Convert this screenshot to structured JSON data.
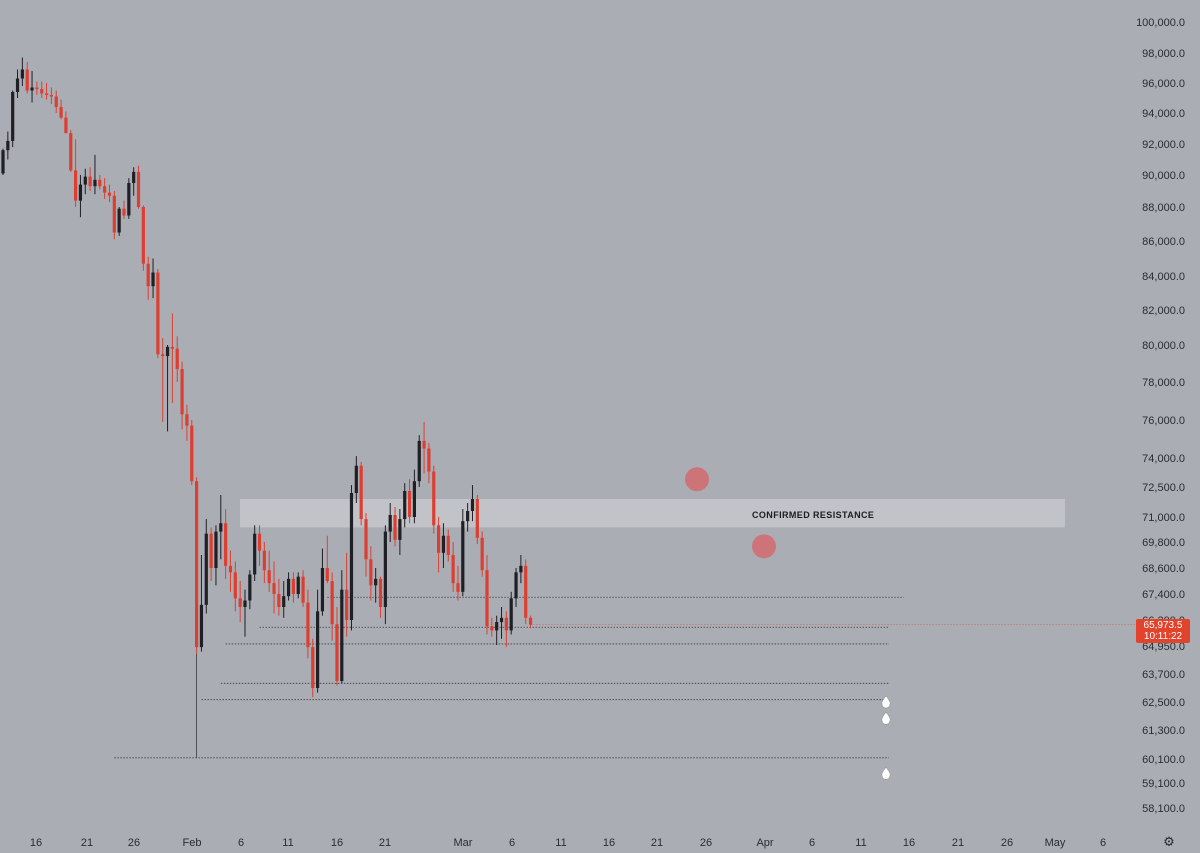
{
  "chart_data": {
    "type": "candlestick",
    "title": "",
    "xlabel": "",
    "ylabel": "",
    "price_axis_labels": [
      "100,000.0",
      "98,000.0",
      "96,000.0",
      "94,000.0",
      "92,000.0",
      "90,000.0",
      "88,000.0",
      "86,000.0",
      "84,000.0",
      "82,000.0",
      "80,000.0",
      "78,000.0",
      "76,000.0",
      "74,000.0",
      "72,500.0",
      "71,000.0",
      "69,800.0",
      "68,600.0",
      "67,400.0",
      "66,200.0",
      "64,950.0",
      "63,700.0",
      "62,500.0",
      "61,300.0",
      "60,100.0",
      "59,100.0",
      "58,100.0"
    ],
    "date_axis_labels": [
      "16",
      "21",
      "26",
      "Feb",
      "6",
      "11",
      "16",
      "21",
      "Mar",
      "6",
      "11",
      "16",
      "21",
      "26",
      "Apr",
      "6",
      "11",
      "16",
      "21",
      "26",
      "May",
      "6"
    ],
    "last_price": "65,973.5",
    "countdown": "10:11:22",
    "annotations": {
      "resistance_label": "CONFIRMED RESISTANCE",
      "resistance_zone": [
        70500,
        71900
      ],
      "rejection_markers": [
        {
          "date_index": 69,
          "price": 72900
        },
        {
          "date_index": 76,
          "price": 69600
        }
      ]
    },
    "support_levels": [
      {
        "price": 67250,
        "from_index": 67,
        "to_index": 89
      },
      {
        "price": 65850,
        "from_index": 53,
        "to_index": 88
      },
      {
        "price": 65050,
        "from_index": 46,
        "to_index": 88
      },
      {
        "price": 63300,
        "from_index": 45,
        "to_index": 88
      },
      {
        "price": 62600,
        "from_index": 41,
        "to_index": 88
      },
      {
        "price": 60150,
        "from_index": 23,
        "to_index": 88
      }
    ],
    "alert_markers": [
      {
        "price": 62500,
        "icon": "droplet-icon"
      },
      {
        "price": 61800,
        "icon": "droplet-icon"
      },
      {
        "price": 59500,
        "icon": "droplet-icon"
      }
    ],
    "candles": [
      [
        90100,
        91700,
        90000,
        91600
      ],
      [
        91600,
        92800,
        91000,
        92200
      ],
      [
        92200,
        95500,
        91800,
        95400
      ],
      [
        95400,
        96900,
        95000,
        96300
      ],
      [
        96300,
        97700,
        95800,
        96900
      ],
      [
        96900,
        97400,
        95300,
        95500
      ],
      [
        95500,
        96800,
        94700,
        95700
      ],
      [
        95700,
        96100,
        95200,
        95600
      ],
      [
        95600,
        96100,
        95000,
        95300
      ],
      [
        95300,
        96000,
        94900,
        95200
      ],
      [
        95200,
        95700,
        94600,
        95100
      ],
      [
        95100,
        95500,
        94000,
        94400
      ],
      [
        94400,
        94900,
        93600,
        93700
      ],
      [
        93700,
        94100,
        92700,
        92700
      ],
      [
        92700,
        92900,
        90200,
        90300
      ],
      [
        90300,
        92300,
        88000,
        88400
      ],
      [
        88400,
        90000,
        87400,
        89400
      ],
      [
        89400,
        90400,
        88800,
        89900
      ],
      [
        89900,
        90500,
        89000,
        89300
      ],
      [
        89300,
        91300,
        88800,
        89700
      ],
      [
        89700,
        90000,
        89100,
        89300
      ],
      [
        89300,
        89800,
        88500,
        88900
      ],
      [
        88900,
        89400,
        88300,
        88700
      ],
      [
        88700,
        89000,
        86100,
        86500
      ],
      [
        86500,
        88000,
        86300,
        87900
      ],
      [
        87900,
        88400,
        87300,
        87500
      ],
      [
        87500,
        89800,
        87300,
        89500
      ],
      [
        89500,
        90500,
        88700,
        90200
      ],
      [
        90200,
        90600,
        87900,
        88000
      ],
      [
        88000,
        88100,
        84300,
        84700
      ],
      [
        84700,
        85100,
        82600,
        83400
      ],
      [
        83400,
        85000,
        82700,
        84200
      ],
      [
        84200,
        84400,
        79300,
        79500
      ],
      [
        79500,
        80400,
        75900,
        79400
      ],
      [
        79400,
        80000,
        75400,
        79900
      ],
      [
        79900,
        81800,
        76900,
        79800
      ],
      [
        79800,
        80500,
        78000,
        78700
      ],
      [
        78700,
        79100,
        75500,
        76300
      ],
      [
        76300,
        76800,
        74900,
        75700
      ],
      [
        75700,
        76000,
        72600,
        72800
      ],
      [
        72800,
        73000,
        64600,
        64900
      ],
      [
        64900,
        69200,
        64700,
        66900
      ],
      [
        66900,
        70900,
        66500,
        70200
      ],
      [
        70200,
        70500,
        68000,
        68600
      ],
      [
        68600,
        70600,
        67800,
        70300
      ],
      [
        70300,
        72100,
        69000,
        70700
      ],
      [
        70700,
        71400,
        68100,
        68700
      ],
      [
        68700,
        69400,
        67500,
        68400
      ],
      [
        68400,
        68900,
        66600,
        67200
      ],
      [
        67200,
        68000,
        66100,
        66800
      ],
      [
        66800,
        67600,
        65400,
        67100
      ],
      [
        67100,
        68500,
        66700,
        68300
      ],
      [
        68300,
        70600,
        68000,
        70200
      ],
      [
        70200,
        70600,
        68700,
        69400
      ],
      [
        69400,
        69800,
        67900,
        68500
      ],
      [
        68500,
        69400,
        67500,
        67900
      ],
      [
        67900,
        68900,
        66500,
        67400
      ],
      [
        67400,
        68100,
        66400,
        66800
      ],
      [
        66800,
        68000,
        66300,
        67300
      ],
      [
        67300,
        68400,
        67100,
        68100
      ],
      [
        68100,
        68400,
        67000,
        67400
      ],
      [
        67400,
        68400,
        67200,
        68200
      ],
      [
        68200,
        68500,
        66800,
        67000
      ],
      [
        67000,
        67600,
        64400,
        64900
      ],
      [
        64900,
        65300,
        62700,
        63100
      ],
      [
        63100,
        67600,
        62900,
        66600
      ],
      [
        66600,
        69500,
        66400,
        68600
      ],
      [
        68600,
        70100,
        67900,
        68000
      ],
      [
        68000,
        68400,
        65200,
        66000
      ],
      [
        66000,
        66800,
        63200,
        63400
      ],
      [
        63400,
        68500,
        63300,
        67600
      ],
      [
        67600,
        69300,
        65400,
        66200
      ],
      [
        66200,
        72600,
        65700,
        72200
      ],
      [
        72200,
        74100,
        71700,
        73600
      ],
      [
        73600,
        73800,
        70600,
        70900
      ],
      [
        70900,
        71200,
        68200,
        69000
      ],
      [
        69000,
        69600,
        67100,
        67800
      ],
      [
        67800,
        68600,
        67000,
        68100
      ],
      [
        68100,
        68200,
        66300,
        66800
      ],
      [
        66800,
        70600,
        66000,
        70300
      ],
      [
        70300,
        71700,
        69800,
        71100
      ],
      [
        71100,
        71500,
        69600,
        69900
      ],
      [
        69900,
        71400,
        69200,
        70900
      ],
      [
        70900,
        72700,
        70500,
        72300
      ],
      [
        72300,
        72900,
        70700,
        71000
      ],
      [
        71000,
        73400,
        70700,
        72800
      ],
      [
        72800,
        75200,
        72500,
        74900
      ],
      [
        74900,
        75900,
        73200,
        74500
      ],
      [
        74500,
        74800,
        72700,
        73300
      ],
      [
        73300,
        73600,
        70200,
        70600
      ],
      [
        70600,
        71000,
        68400,
        69300
      ],
      [
        69300,
        70700,
        68600,
        70100
      ],
      [
        70100,
        70400,
        68900,
        69200
      ],
      [
        69200,
        69800,
        67500,
        67900
      ],
      [
        67900,
        68700,
        67100,
        67500
      ],
      [
        67500,
        71400,
        67300,
        70800
      ],
      [
        70800,
        71700,
        70300,
        71300
      ],
      [
        71300,
        72600,
        70800,
        71900
      ],
      [
        71900,
        72100,
        69700,
        70000
      ],
      [
        70000,
        70300,
        68200,
        68500
      ],
      [
        68500,
        69200,
        65500,
        65900
      ],
      [
        65900,
        66300,
        65400,
        65700
      ],
      [
        65700,
        66400,
        65000,
        66100
      ],
      [
        66100,
        66800,
        65300,
        66300
      ],
      [
        66300,
        66600,
        64900,
        65700
      ],
      [
        65700,
        67500,
        65500,
        67200
      ],
      [
        67200,
        68600,
        66800,
        68400
      ],
      [
        68400,
        69200,
        67900,
        68700
      ],
      [
        68700,
        69000,
        66000,
        66300
      ],
      [
        66300,
        66400,
        65800,
        65974
      ]
    ]
  }
}
